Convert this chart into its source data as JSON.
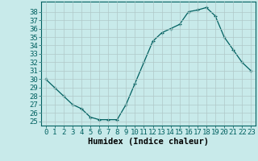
{
  "x": [
    0,
    1,
    2,
    3,
    4,
    5,
    6,
    7,
    8,
    9,
    10,
    11,
    12,
    13,
    14,
    15,
    16,
    17,
    18,
    19,
    20,
    21,
    22,
    23
  ],
  "y": [
    30,
    29,
    28,
    27,
    26.5,
    25.5,
    25.2,
    25.2,
    25.2,
    27,
    29.5,
    32,
    34.5,
    35.5,
    36,
    36.5,
    38,
    38.2,
    38.5,
    37.5,
    35,
    33.5,
    32,
    31
  ],
  "line_color": "#006060",
  "marker_color": "#006060",
  "bg_color": "#c8eaea",
  "grid_color": "#b0c8c8",
  "xlabel": "Humidex (Indice chaleur)",
  "xlim": [
    -0.5,
    23.5
  ],
  "ylim": [
    24.5,
    39.2
  ],
  "yticks": [
    25,
    26,
    27,
    28,
    29,
    30,
    31,
    32,
    33,
    34,
    35,
    36,
    37,
    38
  ],
  "xticks": [
    0,
    1,
    2,
    3,
    4,
    5,
    6,
    7,
    8,
    9,
    10,
    11,
    12,
    13,
    14,
    15,
    16,
    17,
    18,
    19,
    20,
    21,
    22,
    23
  ],
  "tick_font_size": 6.5,
  "label_font_size": 7.5
}
